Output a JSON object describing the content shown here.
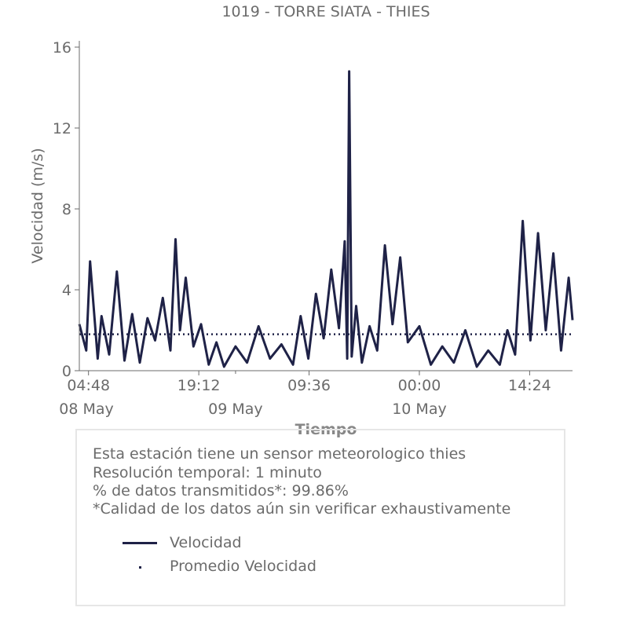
{
  "chart_data": {
    "type": "line",
    "title": "1019 - TORRE SIATA - THIES",
    "xlabel": "Tiempo",
    "ylabel": "Velocidad (m/s)",
    "ylim": [
      0,
      16
    ],
    "yticks": [
      "0",
      "4",
      "8",
      "12",
      "16"
    ],
    "xlim": [
      "2024-05-08 03:36",
      "2024-05-10 20:00"
    ],
    "xticks_minor": [
      {
        "t": "2024-05-08 04:48",
        "label": "04:48"
      },
      {
        "t": "2024-05-08 19:12",
        "label": "19:12"
      },
      {
        "t": "2024-05-09 09:36",
        "label": "09:36"
      },
      {
        "t": "2024-05-10 00:00",
        "label": "00:00"
      },
      {
        "t": "2024-05-10 14:24",
        "label": "14:24"
      }
    ],
    "xticks_major": [
      {
        "t": "2024-05-08 00:00",
        "label": "08 May"
      },
      {
        "t": "2024-05-09 00:00",
        "label": "09 May"
      },
      {
        "t": "2024-05-10 00:00",
        "label": "10 May"
      }
    ],
    "grid": false,
    "series": [
      {
        "name": "Velocidad",
        "color": "#1f2247",
        "x": [
          "2024-05-08 03:36",
          "2024-05-08 04:30",
          "2024-05-08 05:00",
          "2024-05-08 06:00",
          "2024-05-08 06:30",
          "2024-05-08 07:30",
          "2024-05-08 08:30",
          "2024-05-08 09:30",
          "2024-05-08 10:30",
          "2024-05-08 11:30",
          "2024-05-08 12:30",
          "2024-05-08 13:30",
          "2024-05-08 14:30",
          "2024-05-08 15:30",
          "2024-05-08 16:10",
          "2024-05-08 16:45",
          "2024-05-08 17:30",
          "2024-05-08 18:30",
          "2024-05-08 19:30",
          "2024-05-08 20:30",
          "2024-05-08 21:30",
          "2024-05-08 22:30",
          "2024-05-09 00:00",
          "2024-05-09 01:30",
          "2024-05-09 03:00",
          "2024-05-09 04:30",
          "2024-05-09 06:00",
          "2024-05-09 07:30",
          "2024-05-09 08:30",
          "2024-05-09 09:30",
          "2024-05-09 10:30",
          "2024-05-09 11:30",
          "2024-05-09 12:30",
          "2024-05-09 13:30",
          "2024-05-09 14:15",
          "2024-05-09 14:35",
          "2024-05-09 14:50",
          "2024-05-09 15:10",
          "2024-05-09 15:45",
          "2024-05-09 16:30",
          "2024-05-09 17:30",
          "2024-05-09 18:30",
          "2024-05-09 19:30",
          "2024-05-09 20:30",
          "2024-05-09 21:30",
          "2024-05-09 22:30",
          "2024-05-10 00:00",
          "2024-05-10 01:30",
          "2024-05-10 03:00",
          "2024-05-10 04:30",
          "2024-05-10 06:00",
          "2024-05-10 07:30",
          "2024-05-10 09:00",
          "2024-05-10 10:30",
          "2024-05-10 11:30",
          "2024-05-10 12:30",
          "2024-05-10 13:30",
          "2024-05-10 14:30",
          "2024-05-10 15:30",
          "2024-05-10 16:30",
          "2024-05-10 17:30",
          "2024-05-10 18:30",
          "2024-05-10 19:30",
          "2024-05-10 20:00"
        ],
        "y": [
          2.3,
          1.0,
          5.4,
          0.6,
          2.7,
          0.8,
          4.9,
          0.5,
          2.8,
          0.4,
          2.6,
          1.5,
          3.6,
          1.0,
          6.5,
          2.0,
          4.6,
          1.2,
          2.3,
          0.3,
          1.4,
          0.2,
          1.2,
          0.4,
          2.2,
          0.6,
          1.3,
          0.3,
          2.7,
          0.6,
          3.8,
          1.6,
          5.0,
          2.1,
          6.4,
          0.6,
          14.8,
          0.7,
          3.2,
          0.4,
          2.2,
          1.0,
          6.2,
          2.3,
          5.6,
          1.4,
          2.2,
          0.3,
          1.2,
          0.4,
          2.0,
          0.2,
          1.0,
          0.3,
          2.0,
          0.8,
          7.4,
          1.5,
          6.8,
          2.0,
          5.8,
          1.0,
          4.6,
          2.5
        ]
      },
      {
        "name": "Promedio Velocidad",
        "color": "#1f2247",
        "x": [
          "2024-05-08 03:36",
          "2024-05-10 20:00"
        ],
        "y": [
          1.8,
          1.8
        ]
      }
    ]
  },
  "info": {
    "line1": "Esta estación tiene un sensor meteorologico thies",
    "line2": "Resolución temporal: 1 minuto",
    "line3": "% de datos transmitidos*: 99.86%",
    "line4": "*Calidad de los datos aún sin verificar exhaustivamente"
  },
  "legend": {
    "item1": "Velocidad",
    "item2": "Promedio Velocidad"
  }
}
